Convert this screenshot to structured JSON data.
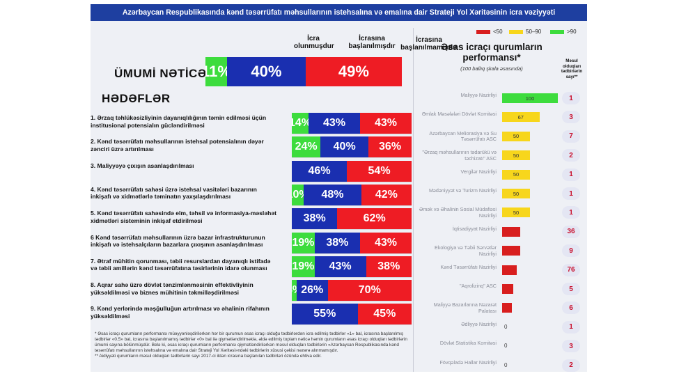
{
  "header": "Azərbaycan Respublikasında kənd təsərrüfatı məhsullarının istehsalına və emalına dair Strateji Yol Xəritəsinin icra vəziyyəti",
  "colors": {
    "green": "#3ddc3d",
    "blue": "#1a2fb0",
    "red": "#ee1c24",
    "yellow": "#f7d61c",
    "dark_red": "#d81e1e"
  },
  "left": {
    "col_headers": {
      "done": "İcra olunmuşdur",
      "started": "İcrasına başlanılmışdır",
      "not_started": "İcrasına başlanılmamışdır"
    },
    "overall_title": "ÜMUMİ NƏTİCƏ",
    "goals_title": "HƏDƏFLƏR",
    "notes": [
      "* Əsas icraçı qurumların performansı müəyyənləşdirilərkən hər bir qurumun əsas icraçı olduğu tədbirlərdən icra edilmiş tədbirlər «1» bal, icrasına başlanılmış tədbirlər «0.5» bal, icrasına başlanılmamış tədbirlər «0» bal ilə qiymətləndirilməklə, əldə edilmiş toplam nəticə həmin qurumların əsas icraçı olduqları tədbirlərin ümumi sayına bölünmüşdür. Belə ki, əsas icraçı qurumların performansı qiymətləndirilərkən məsul olduqları tədbirlərin «Azərbaycan Respublikasında kənd təsərrüfatı məhsullarının istehsalına və emalına dair Strateji Yol Xəritəsi»ndəki tədbirlərin xüsusi çəkisi nəzərə alınmamışdır.",
      "** Aidiyyəti qurumların məsul olduqları tədbirlərin sayı 2017-ci ildən icrasına başlanılan tədbirləri özündə ehtiva edir."
    ]
  },
  "chart_data": [
    {
      "type": "bar",
      "stacked": true,
      "title": "ÜMUMİ NƏTİCƏ / HƏDƏFLƏR",
      "series": [
        {
          "name": "İcra olunmuşdur"
        },
        {
          "name": "İcrasına başlanılmışdır"
        },
        {
          "name": "İcrasına başlanılmamışdır"
        }
      ],
      "overall": {
        "values": [
          11,
          40,
          49
        ],
        "labels": [
          "11%",
          "40%",
          "49%"
        ]
      },
      "goals": [
        {
          "label": "1. Ərzaq təhlükəsizliyinin dayanıqlılığının təmin edilməsi üçün institusional potensialın gücləndirilməsi",
          "values": [
            14,
            43,
            43
          ],
          "labels": [
            "14%",
            "43%",
            "43%"
          ]
        },
        {
          "label": "2. Kənd təsərrüfatı məhsullarının istehsal potensialının dəyər zənciri üzrə artırılması",
          "values": [
            24,
            40,
            36
          ],
          "labels": [
            "24%",
            "40%",
            "36%"
          ]
        },
        {
          "label": "3. Maliyyəyə çıxışın asanlaşdırılması",
          "values": [
            0,
            46,
            54
          ],
          "labels": [
            "",
            "46%",
            "54%"
          ]
        },
        {
          "label": "4. Kənd təsərrüfatı sahəsi üzrə istehsal vasitələri bazarının inkişafı və xidmətlərlə təminatın yaxşılaşdırılması",
          "values": [
            10,
            48,
            42
          ],
          "labels": [
            "10%",
            "48%",
            "42%"
          ]
        },
        {
          "label": "5. Kənd təsərrüfatı sahəsində elm, təhsil və informasiya-məsləhət xidmətləri sisteminin inkişaf etdirilməsi",
          "values": [
            0,
            38,
            62
          ],
          "labels": [
            "",
            "38%",
            "62%"
          ]
        },
        {
          "label": "6 Kənd təsərrüfatı məhsullarının üzrə bazar infrastrukturunun inkişafı və istehsalçıların bazarlara çıxışının asanlaşdırılması",
          "values": [
            19,
            38,
            43
          ],
          "labels": [
            "19%",
            "38%",
            "43%"
          ]
        },
        {
          "label": "7. Ətraf mühitin qorunması, təbii resurslardan dayanıqlı istifadə və təbii amillərin kənd təsərrüfatına təsirlərinin idarə olunması",
          "values": [
            19,
            43,
            38
          ],
          "labels": [
            "19%",
            "43%",
            "38%"
          ]
        },
        {
          "label": "8. Aqrar sahə üzrə dövlət tənzimlənməsinin effektivliyinin yüksəldilməsi və biznes mühitinin təkmilləşdirilməsi",
          "values": [
            4,
            26,
            70
          ],
          "labels": [
            "4%",
            "26%",
            "70%"
          ]
        },
        {
          "label": "9. Kənd yerlərində məşğulluğun artırılması və əhalinin rifahının yüksəldilməsi",
          "values": [
            0,
            55,
            45
          ],
          "labels": [
            "",
            "55%",
            "45%"
          ]
        }
      ]
    },
    {
      "type": "bar",
      "orientation": "horizontal",
      "title": "Əsas icraçı qurumların performansı*",
      "subtitle": "(100 ballıq şkala əsasında)",
      "count_header": "Məsul olduqları tədbirlərin sayı**",
      "legend": [
        {
          "label": "<50",
          "color": "#d81e1e"
        },
        {
          "label": "50–90",
          "color": "#f7d61c"
        },
        {
          "label": ">90",
          "color": "#3ddc3d"
        }
      ],
      "xlim": [
        0,
        100
      ],
      "agencies": [
        {
          "name": "Maliyyə Nazirliyi",
          "score": 100,
          "label": "100",
          "count": "1"
        },
        {
          "name": "Əmlak Məsələləri Dövlət Komitəsi",
          "score": 67,
          "label": "67",
          "count": "3"
        },
        {
          "name": "Azərbaycan Meliorasiya və Su Təsərrüfatı ASC",
          "score": 50,
          "label": "50",
          "count": "7"
        },
        {
          "name": "\"Ərzaq məhsullarının tədarükü və təchizatı\" ASC",
          "score": 50,
          "label": "50",
          "count": "2"
        },
        {
          "name": "Vergilər Nazirliyi",
          "score": 50,
          "label": "50",
          "count": "1"
        },
        {
          "name": "Mədəniyyət və Turizm Nazirliyi",
          "score": 50,
          "label": "50",
          "count": "1"
        },
        {
          "name": "Əmək və Əhalinin Sosial Müdafiəsi Nazirliyi",
          "score": 50,
          "label": "50",
          "count": "1"
        },
        {
          "name": "İqtisadiyyat Nazirliyi",
          "score": 32,
          "label": "",
          "count": "36"
        },
        {
          "name": "Ekologiya və Təbii Sərvətlər Nazirliyi",
          "score": 32,
          "label": "",
          "count": "9"
        },
        {
          "name": "Kənd Təsərrüfatı Nazirliyi",
          "score": 26,
          "label": "",
          "count": "76"
        },
        {
          "name": "\"Aqrolizinq\" ASC",
          "score": 20,
          "label": "",
          "count": "5"
        },
        {
          "name": "Maliyyə Bazarlarına Nəzarət Palatası",
          "score": 17,
          "label": "",
          "count": "6"
        },
        {
          "name": "Ədliyyə Nazirliyi",
          "score": 0,
          "label": "0",
          "count": "1"
        },
        {
          "name": "Dövlət Statistika Komitəsi",
          "score": 0,
          "label": "0",
          "count": "3"
        },
        {
          "name": "Fövqəladə Hallar Nazirliyi",
          "score": 0,
          "label": "0",
          "count": "2"
        }
      ]
    }
  ]
}
